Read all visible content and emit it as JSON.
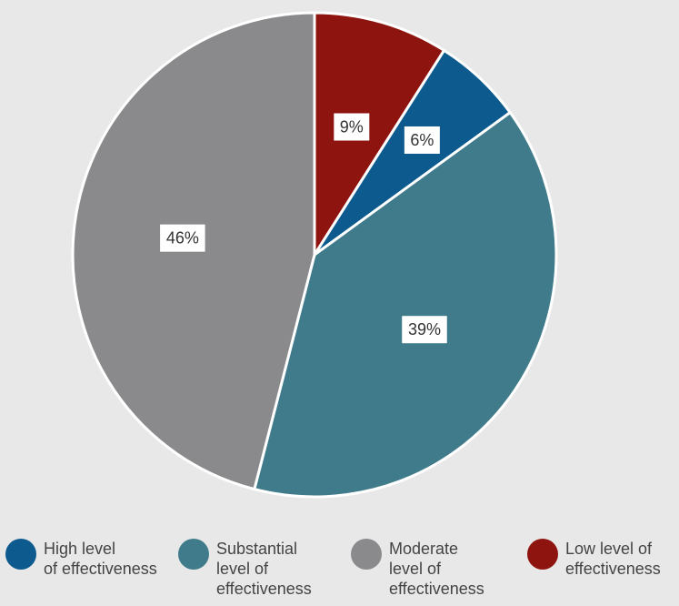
{
  "chart_data": {
    "type": "pie",
    "title": "",
    "slices": [
      {
        "name": "Low level of effectiveness",
        "value": 9,
        "label": "9%",
        "color": "#8e140f"
      },
      {
        "name": "High level of effectiveness",
        "value": 6,
        "label": "6%",
        "color": "#0c5a8e"
      },
      {
        "name": "Substantial level of effectiveness",
        "value": 39,
        "label": "39%",
        "color": "#3f7b8a"
      },
      {
        "name": "Moderate level of effectiveness",
        "value": 46,
        "label": "46%",
        "color": "#8a8a8c"
      }
    ],
    "legend": {
      "placement": "bottom",
      "items": [
        {
          "text": "High level\nof effectiveness",
          "color": "#0c5a8e"
        },
        {
          "text": "Substantial\nlevel of\neffectiveness",
          "color": "#3f7b8a"
        },
        {
          "text": "Moderate\nlevel of\neffectiveness",
          "color": "#8a8a8c"
        },
        {
          "text": "Low level of\neffectiveness",
          "color": "#8e140f"
        }
      ]
    }
  }
}
